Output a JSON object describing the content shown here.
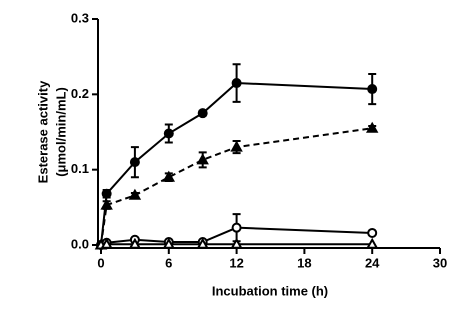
{
  "chart_data": {
    "type": "line",
    "xlabel": "Incubation time (h)",
    "ylabel": [
      "Esterase activity",
      "(μmol/min/mL)"
    ],
    "x": [
      0,
      0.5,
      3,
      6,
      9,
      12,
      24
    ],
    "series": [
      {
        "color": "#000000",
        "marker": "circle",
        "filled": true,
        "dashed": false,
        "values": [
          0,
          0.068,
          0.11,
          0.148,
          0.175,
          0.215,
          0.207
        ],
        "errors": [
          null,
          0.005,
          0.02,
          0.012,
          0.003,
          0.025,
          0.02
        ]
      },
      {
        "color": "#000000",
        "marker": "triangle",
        "filled": true,
        "dashed": true,
        "values": [
          0,
          0.053,
          0.066,
          0.09,
          0.113,
          0.13,
          0.155
        ],
        "errors": [
          null,
          0.005,
          0.003,
          0.005,
          0.01,
          0.008,
          0.003
        ]
      },
      {
        "color": "#000000",
        "marker": "circle",
        "filled": false,
        "dashed": false,
        "values": [
          0,
          0.003,
          0.007,
          0.004,
          0.004,
          0.023,
          0.016
        ],
        "errors": [
          null,
          null,
          null,
          null,
          null,
          0.018,
          null
        ]
      },
      {
        "color": "#000000",
        "marker": "triangle",
        "filled": false,
        "dashed": false,
        "values": [
          0,
          0.001,
          0.001,
          0.001,
          0.001,
          0.001,
          0.001
        ],
        "errors": [
          null,
          null,
          null,
          null,
          null,
          null,
          null
        ]
      }
    ],
    "xlim": [
      0,
      30
    ],
    "xticks": [
      0,
      6,
      12,
      18,
      24,
      30
    ],
    "ylim": [
      0,
      0.3
    ],
    "yticks": [
      {
        "value": 0,
        "label": "0.0"
      },
      0.1,
      0.2,
      0.3
    ]
  }
}
